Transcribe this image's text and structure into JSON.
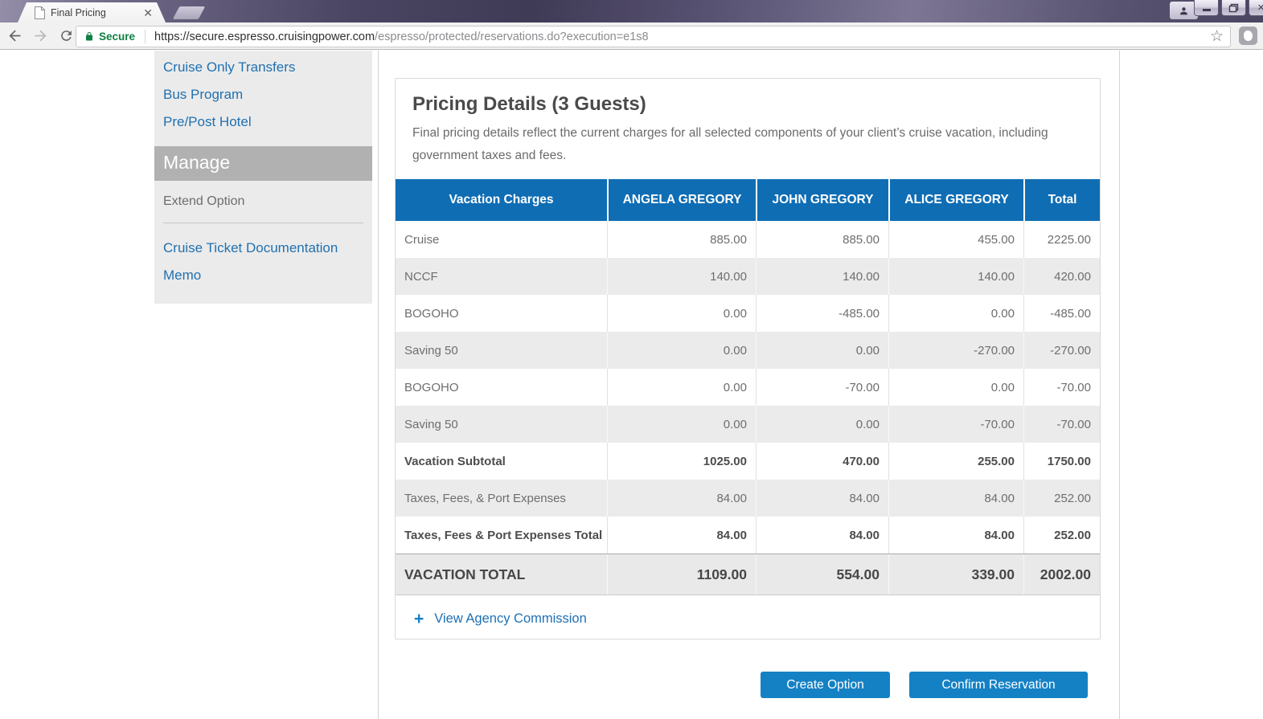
{
  "browser": {
    "tab_title": "Final Pricing",
    "secure_label": "Secure",
    "url_domain": "https://secure.espresso.cruisingpower.com",
    "url_path": "/espresso/protected/reservations.do?execution=e1s8"
  },
  "sidebar": {
    "links_top": [
      "Cruise Only Transfers",
      "Bus Program",
      "Pre/Post Hotel"
    ],
    "section_header": "Manage",
    "extend_option": "Extend Option",
    "links_bottom": [
      "Cruise Ticket Documentation",
      "Memo"
    ]
  },
  "pricing": {
    "title": "Pricing Details (3 Guests)",
    "description": "Final pricing details reflect the current charges for all selected components of your client’s cruise vacation, including government taxes and fees.",
    "commission_link": "View Agency Commission",
    "table": {
      "columns": [
        "Vacation Charges",
        "ANGELA GREGORY",
        "JOHN GREGORY",
        "ALICE GREGORY",
        "Total"
      ],
      "rows": [
        {
          "label": "Cruise",
          "values": [
            "885.00",
            "885.00",
            "455.00",
            "2225.00"
          ],
          "style": "normal"
        },
        {
          "label": "NCCF",
          "values": [
            "140.00",
            "140.00",
            "140.00",
            "420.00"
          ],
          "style": "normal"
        },
        {
          "label": "BOGOHO",
          "values": [
            "0.00",
            "-485.00",
            "0.00",
            "-485.00"
          ],
          "style": "normal"
        },
        {
          "label": "Saving 50",
          "values": [
            "0.00",
            "0.00",
            "-270.00",
            "-270.00"
          ],
          "style": "normal"
        },
        {
          "label": "BOGOHO",
          "values": [
            "0.00",
            "-70.00",
            "0.00",
            "-70.00"
          ],
          "style": "normal"
        },
        {
          "label": "Saving 50",
          "values": [
            "0.00",
            "0.00",
            "-70.00",
            "-70.00"
          ],
          "style": "normal"
        },
        {
          "label": "Vacation Subtotal",
          "values": [
            "1025.00",
            "470.00",
            "255.00",
            "1750.00"
          ],
          "style": "bold"
        },
        {
          "label": "Taxes, Fees, & Port Expenses",
          "values": [
            "84.00",
            "84.00",
            "84.00",
            "252.00"
          ],
          "style": "normal"
        },
        {
          "label": "Taxes, Fees & Port Expenses Total",
          "values": [
            "84.00",
            "84.00",
            "84.00",
            "252.00"
          ],
          "style": "bold"
        },
        {
          "label": "VACATION TOTAL",
          "values": [
            "1109.00",
            "554.00",
            "339.00",
            "2002.00"
          ],
          "style": "total"
        }
      ]
    }
  },
  "actions": {
    "create_option": "Create Option",
    "confirm_reservation": "Confirm Reservation"
  },
  "colors": {
    "table_header_blue": "#0f6db4",
    "button_blue": "#1581c5",
    "link_blue": "#1d70b5",
    "secure_green": "#0e8043"
  }
}
